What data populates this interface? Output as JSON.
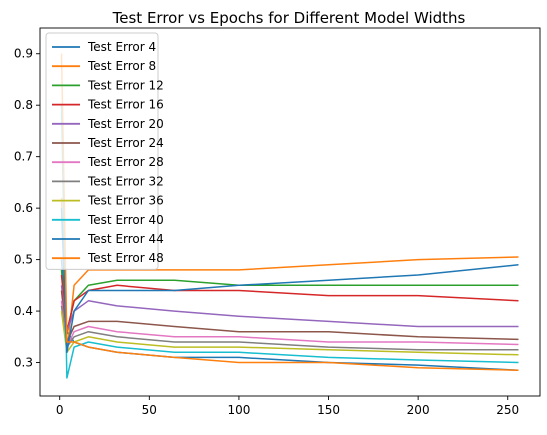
{
  "chart_data": {
    "type": "line",
    "title": "Test Error vs Epochs for Different Model Widths",
    "xlabel": "",
    "ylabel": "",
    "xlim": [
      -11,
      268
    ],
    "ylim": [
      0.235,
      0.95
    ],
    "xticks": [
      0,
      50,
      100,
      150,
      200,
      250
    ],
    "yticks": [
      0.3,
      0.4,
      0.5,
      0.6,
      0.7,
      0.8,
      0.9
    ],
    "legend_position": "top-left",
    "grid": false,
    "x": [
      1,
      4,
      8,
      16,
      32,
      64,
      100,
      150,
      200,
      256
    ],
    "series": [
      {
        "name": "Test Error 4",
        "color": "#1f77b4",
        "values": [
          0.5,
          0.36,
          0.34,
          0.33,
          0.32,
          0.31,
          0.31,
          0.3,
          0.295,
          0.285
        ]
      },
      {
        "name": "Test Error 8",
        "color": "#ff7f0e",
        "values": [
          0.62,
          0.32,
          0.45,
          0.48,
          0.48,
          0.48,
          0.48,
          0.49,
          0.5,
          0.505
        ]
      },
      {
        "name": "Test Error 12",
        "color": "#2ca02c",
        "values": [
          0.48,
          0.36,
          0.42,
          0.45,
          0.46,
          0.46,
          0.45,
          0.45,
          0.45,
          0.45
        ]
      },
      {
        "name": "Test Error 16",
        "color": "#d62728",
        "values": [
          0.47,
          0.36,
          0.42,
          0.44,
          0.45,
          0.44,
          0.44,
          0.43,
          0.43,
          0.42
        ]
      },
      {
        "name": "Test Error 20",
        "color": "#9467bd",
        "values": [
          0.45,
          0.36,
          0.4,
          0.42,
          0.41,
          0.4,
          0.39,
          0.38,
          0.37,
          0.37
        ]
      },
      {
        "name": "Test Error 24",
        "color": "#8c564b",
        "values": [
          0.44,
          0.34,
          0.37,
          0.38,
          0.38,
          0.37,
          0.36,
          0.36,
          0.35,
          0.345
        ]
      },
      {
        "name": "Test Error 28",
        "color": "#e377c2",
        "values": [
          0.42,
          0.33,
          0.36,
          0.37,
          0.36,
          0.35,
          0.35,
          0.34,
          0.34,
          0.335
        ]
      },
      {
        "name": "Test Error 32",
        "color": "#7f7f7f",
        "values": [
          0.41,
          0.33,
          0.35,
          0.36,
          0.35,
          0.34,
          0.34,
          0.33,
          0.325,
          0.325
        ]
      },
      {
        "name": "Test Error 36",
        "color": "#bcbd22",
        "values": [
          0.4,
          0.32,
          0.34,
          0.35,
          0.34,
          0.33,
          0.33,
          0.325,
          0.32,
          0.315
        ]
      },
      {
        "name": "Test Error 40",
        "color": "#17becf",
        "values": [
          0.8,
          0.27,
          0.33,
          0.34,
          0.33,
          0.32,
          0.32,
          0.31,
          0.305,
          0.3
        ]
      },
      {
        "name": "Test Error 44",
        "color": "#1f77b4",
        "values": [
          0.6,
          0.32,
          0.4,
          0.44,
          0.44,
          0.44,
          0.45,
          0.46,
          0.47,
          0.49
        ]
      },
      {
        "name": "Test Error 48",
        "color": "#ff7f0e",
        "values": [
          0.9,
          0.34,
          0.34,
          0.33,
          0.32,
          0.31,
          0.3,
          0.3,
          0.29,
          0.285
        ]
      }
    ]
  }
}
